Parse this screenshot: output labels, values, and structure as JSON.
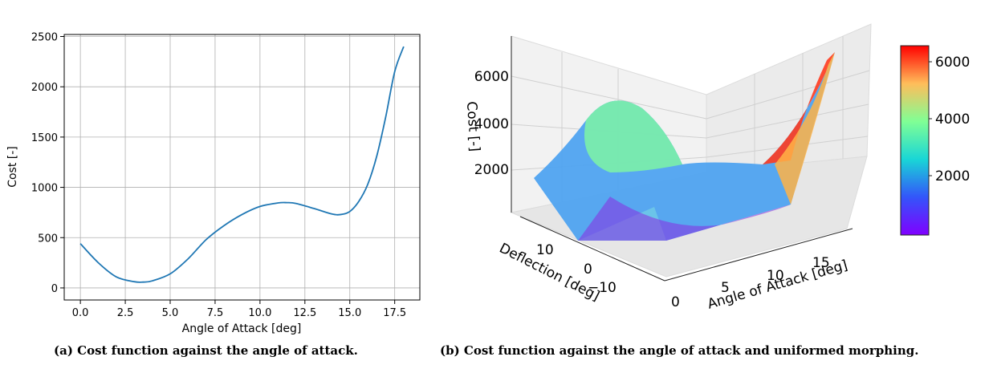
{
  "chart_data": [
    {
      "type": "line",
      "xlabel": "Angle of Attack [deg]",
      "ylabel": "Cost [-]",
      "xlim": [
        -0.9,
        18.9
      ],
      "ylim": [
        -120,
        2520
      ],
      "xticks": [
        0.0,
        2.5,
        5.0,
        7.5,
        10.0,
        12.5,
        15.0,
        17.5
      ],
      "xtick_labels": [
        "0.0",
        "2.5",
        "5.0",
        "7.5",
        "10.0",
        "12.5",
        "15.0",
        "17.5"
      ],
      "yticks": [
        0,
        500,
        1000,
        1500,
        2000,
        2500
      ],
      "ytick_labels": [
        "0",
        "500",
        "1000",
        "1500",
        "2000",
        "2500"
      ],
      "grid": true,
      "color": "#1f77b4",
      "series": [
        {
          "x": [
            0.0,
            1.0,
            2.0,
            3.0,
            3.5,
            4.0,
            5.0,
            6.0,
            7.0,
            8.0,
            9.0,
            10.0,
            11.0,
            11.5,
            12.0,
            13.0,
            14.0,
            14.5,
            15.0,
            15.5,
            16.0,
            16.5,
            17.0,
            17.5,
            18.0
          ],
          "y": [
            440,
            250,
            110,
            62,
            58,
            70,
            140,
            290,
            480,
            620,
            730,
            810,
            845,
            848,
            840,
            790,
            735,
            730,
            760,
            860,
            1030,
            1310,
            1700,
            2150,
            2400
          ]
        }
      ],
      "caption": "(a) Cost function against the angle of attack."
    },
    {
      "type": "surface",
      "xlabel": "Angle of Attack [deg]",
      "ylabel": "Deflection [deg]",
      "zlabel": "Cost [-]",
      "x_ticks": [
        "0",
        "5",
        "10",
        "15"
      ],
      "y_ticks": [
        "10",
        "0",
        "−10"
      ],
      "z_ticks": [
        "2000",
        "4000",
        "6000"
      ],
      "x_range": [
        0,
        18
      ],
      "y_range": [
        -15,
        15
      ],
      "z_range": [
        0,
        6500
      ],
      "colormap": "rainbow",
      "colorbar_ticks": [
        "2000",
        "4000",
        "6000"
      ],
      "caption": "(b) Cost function against the angle of attack and uniformed morphing."
    }
  ]
}
